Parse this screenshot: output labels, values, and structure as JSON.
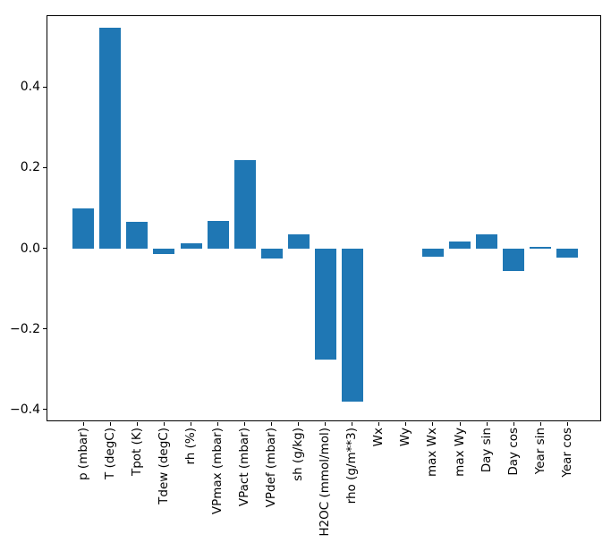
{
  "figure": {
    "background": "#ffffff",
    "bar_color": "#1f77b4",
    "spine_color": "#000000"
  },
  "chart_data": {
    "type": "bar",
    "title": "",
    "xlabel": "",
    "ylabel": "",
    "grid": false,
    "legend": null,
    "x_tick_rotation_deg": 90,
    "bar_width_fraction": 0.8,
    "ylim": [
      -0.43,
      0.577
    ],
    "yticks": [
      0.4,
      0.2,
      0.0,
      -0.2,
      -0.4
    ],
    "ytick_labels": [
      "0.4",
      "0.2",
      "0.0",
      "−0.2",
      "−0.4"
    ],
    "categories": [
      "p (mbar)",
      "T (degC)",
      "Tpot (K)",
      "Tdew (degC)",
      "rh (%)",
      "VPmax (mbar)",
      "VPact (mbar)",
      "VPdef (mbar)",
      "sh (g/kg)",
      "H2OC (mmol/mol)",
      "rho (g/m**3)",
      "Wx",
      "Wy",
      "max Wx",
      "max Wy",
      "Day sin",
      "Day cos",
      "Year sin",
      "Year cos"
    ],
    "values": [
      0.099,
      0.548,
      0.065,
      -0.015,
      0.013,
      0.068,
      0.219,
      -0.025,
      0.035,
      -0.276,
      -0.38,
      0.0,
      0.0,
      -0.02,
      0.017,
      0.035,
      -0.057,
      0.004,
      -0.022
    ]
  }
}
